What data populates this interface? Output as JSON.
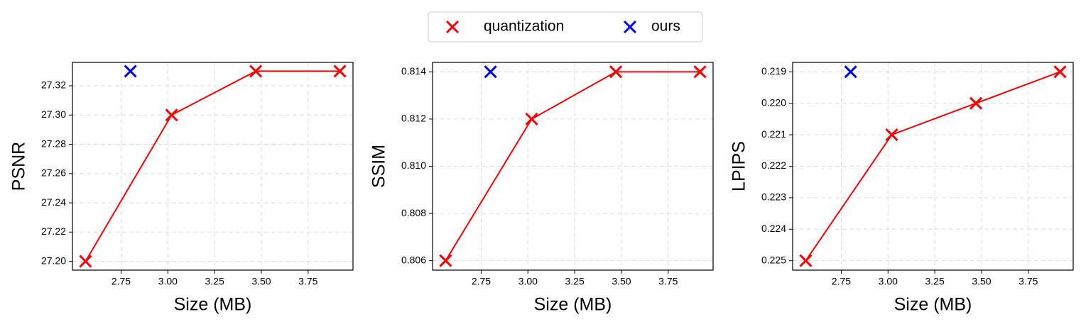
{
  "chart_data": [
    {
      "type": "line",
      "ylabel": "PSNR",
      "xlabel": "Size (MB)",
      "grid": true,
      "xlim": [
        2.49,
        3.99
      ],
      "xticks": [
        2.75,
        {
          "value": 3,
          "label": "3.00"
        },
        3.25,
        {
          "value": 3.5,
          "label": "3.50"
        },
        3.75
      ],
      "ylim": [
        27.194,
        27.336
      ],
      "yticks": [
        {
          "value": 27.2,
          "label": "27.20"
        },
        27.22,
        27.24,
        27.26,
        27.28,
        {
          "value": 27.3,
          "label": "27.30"
        },
        27.32
      ],
      "series": [
        {
          "name": "quantization",
          "color": "#ff0000",
          "x": [
            2.56,
            3.02,
            3.47,
            3.92
          ],
          "values": [
            27.2,
            27.3,
            27.33,
            27.33
          ]
        },
        {
          "name": "ours",
          "color": "#0000ff",
          "x": [
            2.8
          ],
          "values": [
            27.33
          ]
        }
      ]
    },
    {
      "type": "line",
      "ylabel": "SSIM",
      "xlabel": "Size (MB)",
      "grid": true,
      "xlim": [
        2.49,
        3.99
      ],
      "xticks": [
        2.75,
        {
          "value": 3,
          "label": "3.00"
        },
        3.25,
        {
          "value": 3.5,
          "label": "3.50"
        },
        3.75
      ],
      "ylim": [
        0.8056,
        0.8144
      ],
      "yticks": [
        0.806,
        0.808,
        {
          "value": 0.81,
          "label": "0.810"
        },
        0.812,
        0.814
      ],
      "series": [
        {
          "name": "quantization",
          "color": "#ff0000",
          "x": [
            2.56,
            3.02,
            3.47,
            3.92
          ],
          "values": [
            0.806,
            0.812,
            0.814,
            0.814
          ]
        },
        {
          "name": "ours",
          "color": "#0000ff",
          "x": [
            2.8
          ],
          "values": [
            0.814
          ]
        }
      ]
    },
    {
      "type": "line",
      "ylabel": "LPIPS",
      "xlabel": "Size (MB)",
      "grid": true,
      "xlim": [
        2.49,
        3.99
      ],
      "xticks": [
        2.75,
        {
          "value": 3,
          "label": "3.00"
        },
        3.25,
        {
          "value": 3.5,
          "label": "3.50"
        },
        3.75
      ],
      "ylim": [
        0.2253,
        0.2187
      ],
      "yticks": [
        0.219,
        {
          "value": 0.22,
          "label": "0.220"
        },
        0.221,
        0.222,
        0.223,
        0.224,
        0.225
      ],
      "series": [
        {
          "name": "quantization",
          "color": "#ff0000",
          "x": [
            2.56,
            3.02,
            3.47,
            3.92
          ],
          "values": [
            0.225,
            0.221,
            0.22,
            0.219
          ]
        },
        {
          "name": "ours",
          "color": "#0000ff",
          "x": [
            2.8
          ],
          "values": [
            0.219
          ]
        }
      ]
    }
  ]
}
